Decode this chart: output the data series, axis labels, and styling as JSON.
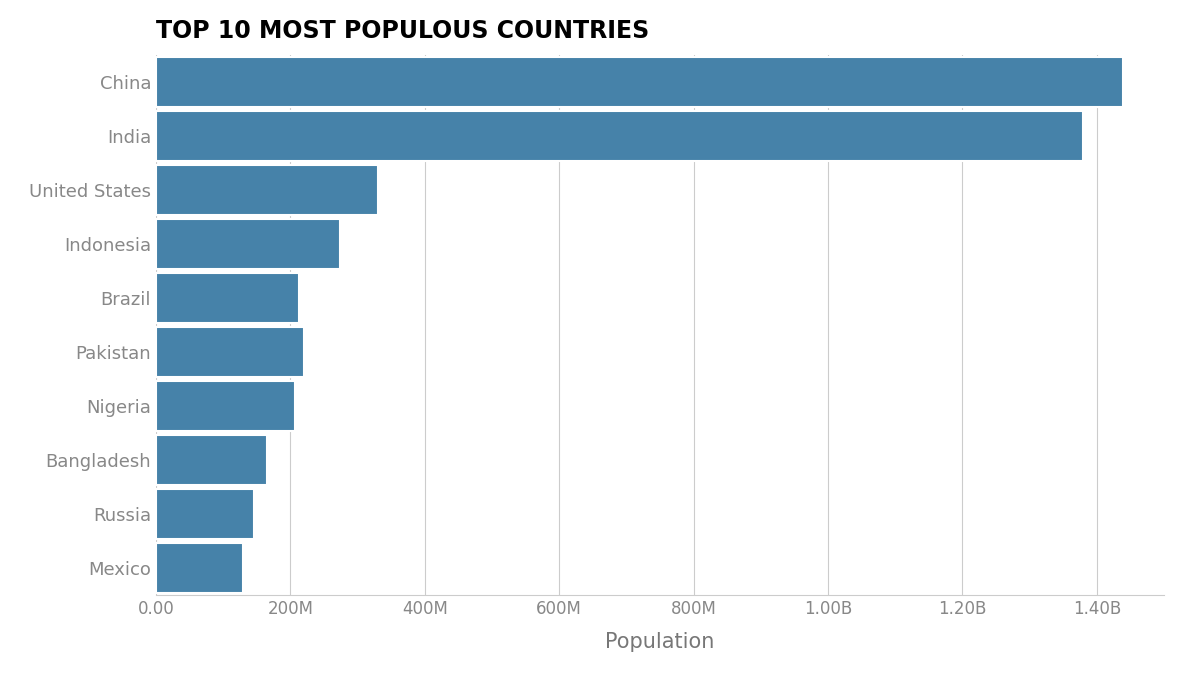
{
  "title": "TOP 10 MOST POPULOUS COUNTRIES",
  "xlabel": "Population",
  "countries": [
    "China",
    "India",
    "United States",
    "Indonesia",
    "Brazil",
    "Pakistan",
    "Nigeria",
    "Bangladesh",
    "Russia",
    "Mexico"
  ],
  "populations": [
    1439323776,
    1380004385,
    331002651,
    273523615,
    212559417,
    220892340,
    206139589,
    164689383,
    145934462,
    128932753
  ],
  "bar_color": "#4682a9",
  "background_color": "#ffffff",
  "grid_color": "#cccccc",
  "title_fontsize": 17,
  "xlabel_fontsize": 15,
  "ytick_fontsize": 13,
  "xtick_fontsize": 12,
  "xlim": [
    0,
    1500000000
  ],
  "bar_height": 0.92
}
